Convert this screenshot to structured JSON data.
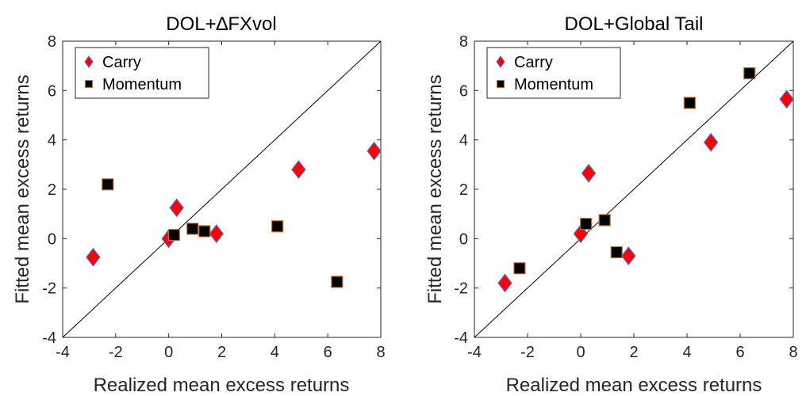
{
  "chart_data": [
    {
      "type": "scatter",
      "title": "DOL+∆FXvol",
      "xlabel": "Realized mean excess returns",
      "ylabel": "Fitted mean excess returns",
      "xlim": [
        -4,
        8
      ],
      "ylim": [
        -4,
        8
      ],
      "xticks": [
        "-4",
        "-2",
        "0",
        "2",
        "4",
        "6",
        "8"
      ],
      "yticks": [
        "-4",
        "-2",
        "0",
        "2",
        "4",
        "6",
        "8"
      ],
      "diagonal_line": true,
      "grid": false,
      "legend_position": "top-left",
      "series": [
        {
          "name": "Carry",
          "marker": "diamond",
          "color": "#ff0000",
          "edge_color": "#4a6fd4",
          "x": [
            -2.85,
            0.0,
            0.3,
            1.8,
            4.9,
            7.75
          ],
          "y": [
            -0.75,
            0.0,
            1.25,
            0.2,
            2.8,
            3.55
          ]
        },
        {
          "name": "Momentum",
          "marker": "square",
          "color": "#000000",
          "edge_color": "#d2691e",
          "x": [
            -2.3,
            0.2,
            0.9,
            1.35,
            4.1,
            6.35
          ],
          "y": [
            2.2,
            0.15,
            0.4,
            0.3,
            0.5,
            -1.75
          ]
        }
      ]
    },
    {
      "type": "scatter",
      "title": "DOL+Global Tail",
      "xlabel": "Realized mean excess returns",
      "ylabel": "Fitted mean excess returns",
      "xlim": [
        -4,
        8
      ],
      "ylim": [
        -4,
        8
      ],
      "xticks": [
        "-4",
        "-2",
        "0",
        "2",
        "4",
        "6",
        "8"
      ],
      "yticks": [
        "-4",
        "-2",
        "0",
        "2",
        "4",
        "6",
        "8"
      ],
      "diagonal_line": true,
      "grid": false,
      "legend_position": "top-left",
      "series": [
        {
          "name": "Carry",
          "marker": "diamond",
          "color": "#ff0000",
          "edge_color": "#4a6fd4",
          "x": [
            -2.85,
            0.0,
            0.3,
            1.8,
            4.9,
            7.75
          ],
          "y": [
            -1.8,
            0.2,
            2.65,
            -0.7,
            3.9,
            5.65
          ]
        },
        {
          "name": "Momentum",
          "marker": "square",
          "color": "#000000",
          "edge_color": "#d2691e",
          "x": [
            -2.3,
            0.2,
            0.9,
            1.35,
            4.1,
            6.35
          ],
          "y": [
            -1.2,
            0.6,
            0.75,
            -0.55,
            5.5,
            6.7
          ]
        }
      ]
    }
  ]
}
